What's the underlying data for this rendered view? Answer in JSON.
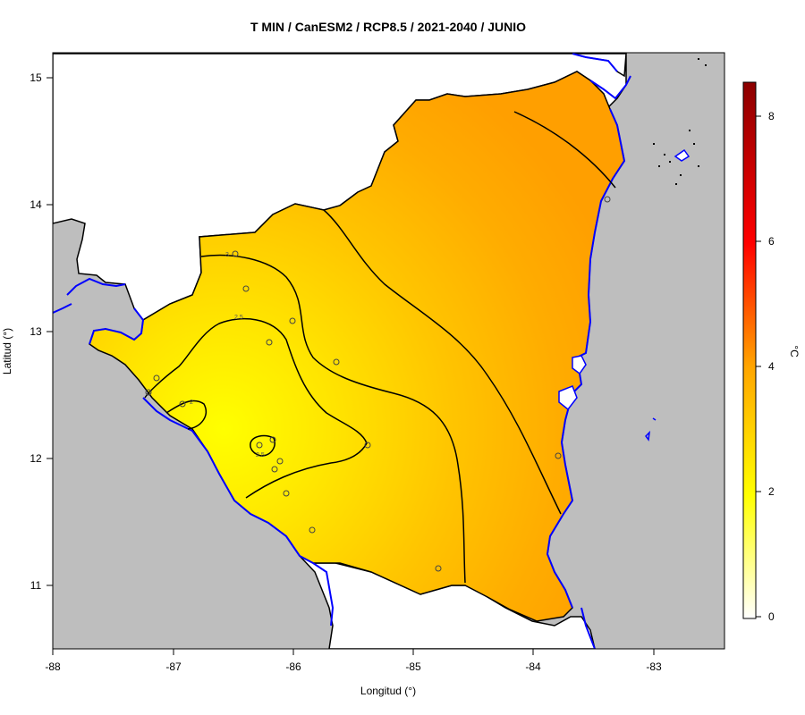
{
  "title": "T MIN / CanESM2 / RCP8.5 / 2021-2040 / JUNIO",
  "x_axis": {
    "label": "Longitud (°)",
    "ticks": [
      "-88",
      "-87",
      "-86",
      "-85",
      "-84",
      "-83"
    ]
  },
  "y_axis": {
    "label": "Latitud (°)",
    "ticks": [
      "15",
      "14",
      "13",
      "12",
      "11"
    ]
  },
  "colorbar": {
    "unit": "°C",
    "ticks": [
      "0",
      "2",
      "4",
      "6",
      "8"
    ],
    "range": [
      0,
      8.6
    ],
    "colors": [
      "#ffffff",
      "#ffff00",
      "#ffa500",
      "#ff0000",
      "#8b0000"
    ]
  },
  "contour_labels": [
    "3",
    "2.5",
    "2",
    "2.5"
  ],
  "colors": {
    "ocean": "#bebebe",
    "border": "#000000",
    "coast": "#0000ff",
    "fill_low": "#ffff00",
    "fill_high": "#ffa500"
  }
}
